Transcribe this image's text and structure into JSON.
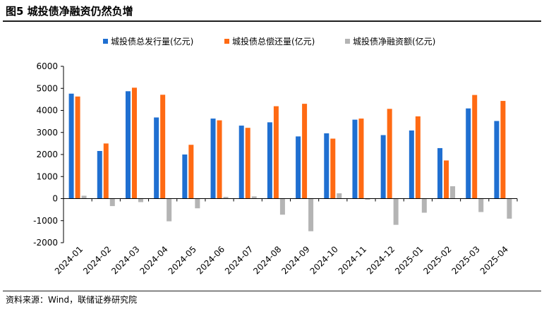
{
  "figure": {
    "title": "图5  城投债净融资仍然负增",
    "source": "资料来源：Wind，联储证券研究院"
  },
  "chart_data": {
    "type": "bar",
    "categories": [
      "2024-01",
      "2024-02",
      "2024-03",
      "2024-04",
      "2024-05",
      "2024-06",
      "2024-07",
      "2024-08",
      "2024-09",
      "2024-10",
      "2024-11",
      "2024-12",
      "2025-01",
      "2025-02",
      "2025-03",
      "2025-04"
    ],
    "series": [
      {
        "name": "城投债总发行量(亿元)",
        "color": "#1f6fd1",
        "values": [
          4760,
          2160,
          4870,
          3680,
          2000,
          3630,
          3310,
          3460,
          2820,
          2960,
          3580,
          2880,
          3090,
          2290,
          4090,
          3520
        ]
      },
      {
        "name": "城投债总偿还量(亿元)",
        "color": "#ff6a13",
        "values": [
          4630,
          2500,
          5030,
          4710,
          2440,
          3550,
          3210,
          4190,
          4300,
          2720,
          3630,
          4070,
          3730,
          1730,
          4700,
          4430
        ]
      },
      {
        "name": "城投债净融资额(亿元)",
        "color": "#b4b4b4",
        "values": [
          130,
          -340,
          -160,
          -1030,
          -440,
          80,
          100,
          -730,
          -1480,
          240,
          -50,
          -1190,
          -640,
          560,
          -610,
          -910
        ]
      }
    ],
    "yticks": [
      6000,
      5000,
      4000,
      3000,
      2000,
      1000,
      0,
      -1000,
      -2000
    ],
    "ylim": [
      -2000,
      6000
    ],
    "grid": false,
    "legend_position": "top-center"
  }
}
